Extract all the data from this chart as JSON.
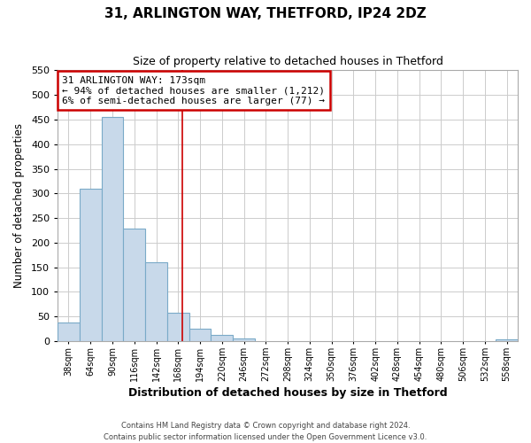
{
  "title": "31, ARLINGTON WAY, THETFORD, IP24 2DZ",
  "subtitle": "Size of property relative to detached houses in Thetford",
  "xlabel": "Distribution of detached houses by size in Thetford",
  "ylabel": "Number of detached properties",
  "bar_values": [
    38,
    310,
    456,
    228,
    160,
    57,
    26,
    12,
    5,
    0,
    0,
    0,
    0,
    0,
    0,
    0,
    0,
    0,
    0,
    0,
    3
  ],
  "bin_edges": [
    25,
    51,
    77,
    103,
    129,
    155,
    181,
    207,
    233,
    259,
    285,
    311,
    337,
    363,
    389,
    415,
    441,
    467,
    493,
    519,
    545,
    571
  ],
  "tick_labels": [
    "38sqm",
    "64sqm",
    "90sqm",
    "116sqm",
    "142sqm",
    "168sqm",
    "194sqm",
    "220sqm",
    "246sqm",
    "272sqm",
    "298sqm",
    "324sqm",
    "350sqm",
    "376sqm",
    "402sqm",
    "428sqm",
    "454sqm",
    "480sqm",
    "506sqm",
    "532sqm",
    "558sqm"
  ],
  "bar_color": "#c8d9ea",
  "bar_edge_color": "#7aaac8",
  "property_line_x": 173,
  "property_line_color": "#cc0000",
  "ylim": [
    0,
    550
  ],
  "xlim": [
    25,
    571
  ],
  "annotation_line1": "31 ARLINGTON WAY: 173sqm",
  "annotation_line2": "← 94% of detached houses are smaller (1,212)",
  "annotation_line3": "6% of semi-detached houses are larger (77) →",
  "annotation_box_color": "#cc0000",
  "footer1": "Contains HM Land Registry data © Crown copyright and database right 2024.",
  "footer2": "Contains public sector information licensed under the Open Government Licence v3.0.",
  "background_color": "#ffffff",
  "grid_color": "#cccccc",
  "yticks": [
    0,
    50,
    100,
    150,
    200,
    250,
    300,
    350,
    400,
    450,
    500,
    550
  ]
}
